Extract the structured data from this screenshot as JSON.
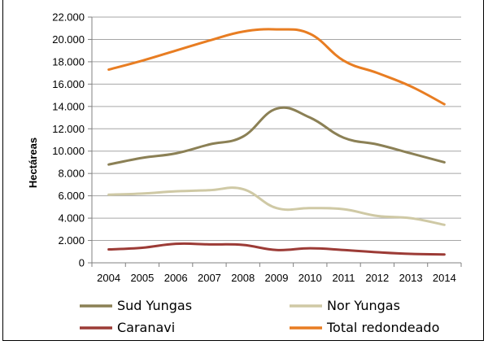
{
  "chart_data": {
    "type": "line",
    "title": "",
    "xlabel": "",
    "ylabel": "Hectáreas",
    "ylim": [
      0,
      22000
    ],
    "y_ticks": [
      "0",
      "2.000",
      "4.000",
      "6.000",
      "8.000",
      "10.000",
      "12.000",
      "14.000",
      "16.000",
      "18.000",
      "20.000",
      "22.000"
    ],
    "x": [
      "2004",
      "2005",
      "2006",
      "2007",
      "2008",
      "2009",
      "2010",
      "2011",
      "2012",
      "2013",
      "2014"
    ],
    "grid": true,
    "legend_position": "bottom",
    "series": [
      {
        "name": "Sud Yungas",
        "color": "#8b8055",
        "values": [
          8800,
          9400,
          9800,
          10600,
          11300,
          13800,
          13000,
          11200,
          10600,
          9800,
          9000
        ]
      },
      {
        "name": "Nor Yungas",
        "color": "#cfc9a5",
        "values": [
          6100,
          6200,
          6400,
          6500,
          6600,
          4900,
          4900,
          4800,
          4200,
          4000,
          3400
        ]
      },
      {
        "name": "Caranavi",
        "color": "#9c3b36",
        "values": [
          1200,
          1350,
          1700,
          1650,
          1600,
          1150,
          1300,
          1150,
          950,
          800,
          750
        ]
      },
      {
        "name": "Total redondeado",
        "color": "#e87d22",
        "values": [
          17300,
          18100,
          19000,
          19900,
          20700,
          20900,
          20500,
          18100,
          17000,
          15800,
          14200
        ]
      }
    ]
  }
}
